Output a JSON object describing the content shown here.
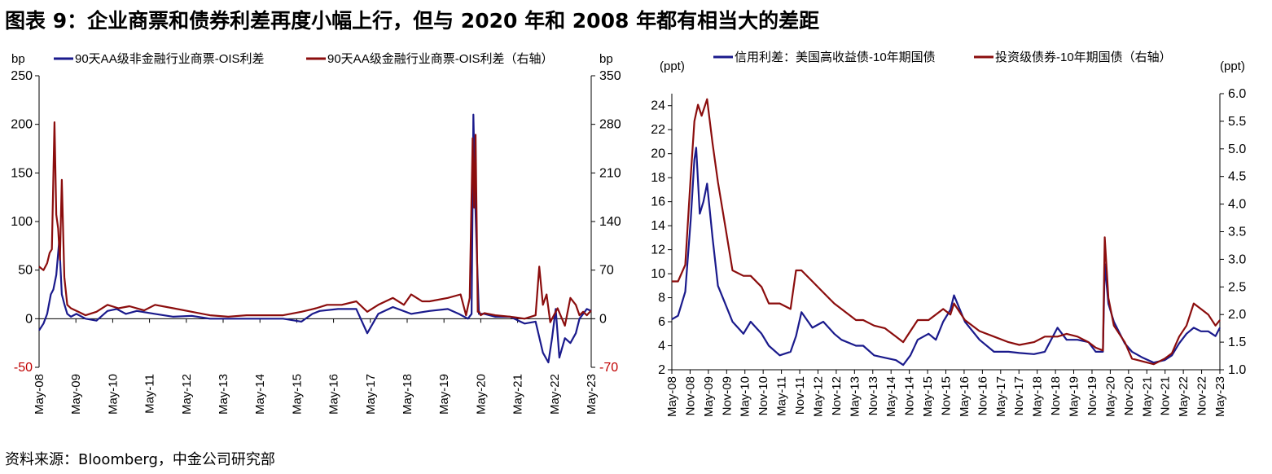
{
  "title": "图表 9：企业商票和债券利差再度小幅上行，但与 2020 年和 2008 年都有相当大的差距",
  "source": "资料来源：Bloomberg，中金公司研究部",
  "colors": {
    "navy": "#1a1a8c",
    "maroon": "#8b0d0d",
    "axis": "#000000",
    "red_tick": "#c00000"
  },
  "chart_data": [
    {
      "type": "line",
      "left_unit": "bp",
      "right_unit": "bp",
      "legend_position": "top",
      "grid": false,
      "x_ticks": [
        "May-08",
        "May-09",
        "May-10",
        "May-11",
        "May-12",
        "May-13",
        "May-14",
        "May-15",
        "May-16",
        "May-17",
        "May-18",
        "May-19",
        "May-20",
        "May-21",
        "May-22",
        "May-23"
      ],
      "x_range": [
        2008.33,
        2023.42
      ],
      "ylim_left": [
        -50,
        250
      ],
      "yticks_left": [
        "250",
        "200",
        "150",
        "100",
        "50",
        "0",
        "-50"
      ],
      "ylim_right": [
        -70,
        350
      ],
      "yticks_right": [
        "350",
        "280",
        "210",
        "140",
        "70",
        "0",
        "-70"
      ],
      "series": [
        {
          "name": "90天AA级非金融行业商票-OIS利差",
          "color": "#1a1a8c",
          "axis": "left",
          "x": [
            2008.33,
            2008.45,
            2008.55,
            2008.65,
            2008.72,
            2008.8,
            2008.88,
            2008.95,
            2009.02,
            2009.1,
            2009.2,
            2009.35,
            2009.6,
            2009.9,
            2010.2,
            2010.45,
            2010.7,
            2011.0,
            2011.5,
            2012.0,
            2012.5,
            2013.0,
            2013.5,
            2014.0,
            2014.5,
            2015.0,
            2015.5,
            2015.8,
            2016.0,
            2016.5,
            2017.0,
            2017.3,
            2017.6,
            2018.0,
            2018.5,
            2019.0,
            2019.5,
            2019.8,
            2020.05,
            2020.15,
            2020.2,
            2020.25,
            2020.3,
            2020.35,
            2020.5,
            2020.8,
            2021.2,
            2021.6,
            2021.9,
            2022.1,
            2022.25,
            2022.35,
            2022.45,
            2022.55,
            2022.7,
            2022.85,
            2023.0,
            2023.1,
            2023.2,
            2023.3,
            2023.42
          ],
          "y": [
            -12,
            -5,
            5,
            25,
            30,
            45,
            80,
            25,
            15,
            5,
            2,
            5,
            0,
            -2,
            8,
            10,
            5,
            8,
            5,
            2,
            3,
            0,
            0,
            0,
            0,
            0,
            -3,
            5,
            8,
            10,
            10,
            -15,
            5,
            12,
            5,
            8,
            10,
            5,
            0,
            5,
            210,
            120,
            60,
            5,
            5,
            2,
            2,
            -5,
            -3,
            -35,
            -45,
            -20,
            10,
            -40,
            -20,
            -25,
            -15,
            0,
            5,
            10,
            8
          ]
        },
        {
          "name": "90天AA级金融行业商票-OIS利差（右轴）",
          "color": "#8b0d0d",
          "axis": "right",
          "x": [
            2008.33,
            2008.45,
            2008.55,
            2008.62,
            2008.68,
            2008.75,
            2008.8,
            2008.85,
            2008.9,
            2008.95,
            2009.02,
            2009.1,
            2009.2,
            2009.4,
            2009.6,
            2009.9,
            2010.2,
            2010.5,
            2010.8,
            2011.2,
            2011.5,
            2012.0,
            2012.5,
            2013.0,
            2013.5,
            2014.0,
            2014.5,
            2015.0,
            2015.5,
            2015.9,
            2016.2,
            2016.6,
            2017.0,
            2017.3,
            2017.6,
            2018.0,
            2018.3,
            2018.5,
            2018.8,
            2019.0,
            2019.5,
            2019.85,
            2020.0,
            2020.1,
            2020.18,
            2020.22,
            2020.26,
            2020.32,
            2020.36,
            2020.4,
            2020.5,
            2020.8,
            2021.2,
            2021.6,
            2021.9,
            2022.0,
            2022.1,
            2022.2,
            2022.3,
            2022.5,
            2022.7,
            2022.85,
            2023.0,
            2023.1,
            2023.2,
            2023.3,
            2023.42
          ],
          "y": [
            75,
            70,
            80,
            95,
            100,
            283,
            150,
            130,
            85,
            200,
            60,
            20,
            15,
            10,
            5,
            10,
            20,
            15,
            18,
            12,
            20,
            15,
            10,
            5,
            3,
            5,
            5,
            5,
            10,
            15,
            20,
            20,
            25,
            10,
            20,
            30,
            20,
            35,
            25,
            25,
            30,
            35,
            5,
            30,
            260,
            160,
            265,
            10,
            10,
            5,
            8,
            5,
            3,
            0,
            5,
            75,
            20,
            35,
            -5,
            15,
            -10,
            30,
            20,
            5,
            10,
            5,
            12
          ]
        }
      ]
    },
    {
      "type": "line",
      "left_unit": "(ppt)",
      "right_unit": "(ppt)",
      "legend_position": "top",
      "grid": false,
      "x_ticks": [
        "May-08",
        "Nov-08",
        "May-09",
        "Nov-09",
        "May-10",
        "Nov-10",
        "May-11",
        "Nov-11",
        "May-12",
        "Nov-12",
        "May-13",
        "Nov-13",
        "May-14",
        "Nov-14",
        "May-15",
        "Nov-15",
        "May-16",
        "Nov-16",
        "May-17",
        "Nov-17",
        "May-18",
        "Nov-18",
        "May-19",
        "Nov-19",
        "May-20",
        "Nov-20",
        "May-21",
        "Nov-21",
        "May-22",
        "Nov-22",
        "May-23"
      ],
      "x_range": [
        2008.33,
        2023.42
      ],
      "ylim_left": [
        2,
        25
      ],
      "yticks_left": [
        "24",
        "22",
        "20",
        "18",
        "16",
        "14",
        "12",
        "10",
        "8",
        "6",
        "4",
        "2"
      ],
      "ylim_right": [
        1.0,
        6.0
      ],
      "yticks_right": [
        "6.0",
        "5.5",
        "5.0",
        "4.5",
        "4.0",
        "3.5",
        "3.0",
        "2.5",
        "2.0",
        "1.5",
        "1.0"
      ],
      "series": [
        {
          "name": "信用利差：美国高收益债-10年期国债",
          "color": "#1a1a8c",
          "axis": "left",
          "x": [
            2008.33,
            2008.5,
            2008.7,
            2008.85,
            2008.95,
            2009.0,
            2009.1,
            2009.2,
            2009.3,
            2009.45,
            2009.6,
            2009.8,
            2010.0,
            2010.3,
            2010.5,
            2010.8,
            2011.0,
            2011.3,
            2011.6,
            2011.75,
            2011.9,
            2012.2,
            2012.5,
            2012.8,
            2013.0,
            2013.4,
            2013.6,
            2013.9,
            2014.2,
            2014.5,
            2014.7,
            2014.9,
            2015.1,
            2015.4,
            2015.6,
            2015.8,
            2016.0,
            2016.1,
            2016.4,
            2016.8,
            2017.2,
            2017.6,
            2017.9,
            2018.3,
            2018.6,
            2018.95,
            2019.2,
            2019.5,
            2019.8,
            2020.0,
            2020.2,
            2020.25,
            2020.35,
            2020.5,
            2020.8,
            2021.0,
            2021.3,
            2021.6,
            2021.9,
            2022.1,
            2022.3,
            2022.5,
            2022.7,
            2022.9,
            2023.1,
            2023.3,
            2023.42
          ],
          "y": [
            6.2,
            6.5,
            8.5,
            14.5,
            19.5,
            20.5,
            15,
            16,
            17.5,
            13,
            9,
            7.5,
            6,
            5,
            6,
            5,
            4,
            3.2,
            3.5,
            4.8,
            6.8,
            5.5,
            6,
            5,
            4.5,
            4,
            4,
            3.2,
            3,
            2.8,
            2.4,
            3.2,
            4.5,
            5,
            4.5,
            6,
            7,
            8.2,
            6,
            4.5,
            3.5,
            3.5,
            3.4,
            3.3,
            3.5,
            5.5,
            4.5,
            4.5,
            4.3,
            3.5,
            3.5,
            10.8,
            7.5,
            6,
            4.2,
            3.5,
            3,
            2.6,
            2.8,
            3.2,
            4.2,
            5,
            5.5,
            5.2,
            5.2,
            4.8,
            5.5
          ]
        },
        {
          "name": "投资级债券-10年期国债（右轴）",
          "color": "#8b0d0d",
          "axis": "right",
          "x": [
            2008.33,
            2008.5,
            2008.7,
            2008.85,
            2008.95,
            2009.05,
            2009.15,
            2009.3,
            2009.45,
            2009.6,
            2009.8,
            2010.0,
            2010.3,
            2010.5,
            2010.8,
            2011.0,
            2011.3,
            2011.6,
            2011.75,
            2011.9,
            2012.2,
            2012.5,
            2012.8,
            2013.0,
            2013.4,
            2013.6,
            2013.9,
            2014.2,
            2014.5,
            2014.7,
            2014.9,
            2015.1,
            2015.4,
            2015.6,
            2015.8,
            2016.0,
            2016.1,
            2016.4,
            2016.8,
            2017.2,
            2017.6,
            2017.9,
            2018.3,
            2018.6,
            2018.95,
            2019.2,
            2019.5,
            2019.8,
            2020.0,
            2020.2,
            2020.25,
            2020.35,
            2020.5,
            2020.8,
            2021.0,
            2021.3,
            2021.6,
            2021.9,
            2022.1,
            2022.3,
            2022.5,
            2022.7,
            2022.9,
            2023.1,
            2023.3,
            2023.42
          ],
          "y": [
            2.6,
            2.6,
            2.9,
            4.5,
            5.5,
            5.8,
            5.6,
            5.9,
            5.1,
            4.4,
            3.6,
            2.8,
            2.7,
            2.7,
            2.5,
            2.2,
            2.2,
            2.1,
            2.8,
            2.8,
            2.6,
            2.4,
            2.2,
            2.1,
            1.9,
            1.9,
            1.8,
            1.75,
            1.6,
            1.5,
            1.7,
            1.9,
            1.9,
            2.0,
            2.1,
            2.0,
            2.2,
            1.9,
            1.7,
            1.6,
            1.5,
            1.45,
            1.5,
            1.6,
            1.6,
            1.65,
            1.6,
            1.5,
            1.4,
            1.35,
            3.4,
            2.3,
            1.8,
            1.5,
            1.2,
            1.15,
            1.1,
            1.2,
            1.3,
            1.6,
            1.8,
            2.2,
            2.1,
            2.0,
            1.8,
            1.9
          ]
        }
      ]
    }
  ]
}
